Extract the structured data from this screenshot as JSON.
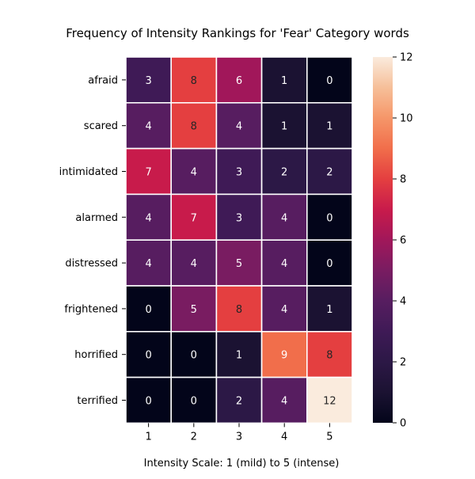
{
  "chart_data": {
    "type": "heatmap",
    "title": "Frequency of Intensity Rankings for 'Fear' Category words",
    "xlabel": "Intensity Scale: 1 (mild) to 5 (intense)",
    "ylabel": "",
    "x_categories": [
      "1",
      "2",
      "3",
      "4",
      "5"
    ],
    "y_categories": [
      "afraid",
      "scared",
      "intimidated",
      "alarmed",
      "distressed",
      "frightened",
      "horrified",
      "terrified"
    ],
    "values": [
      [
        3,
        8,
        6,
        1,
        0
      ],
      [
        4,
        8,
        4,
        1,
        1
      ],
      [
        7,
        4,
        3,
        2,
        2
      ],
      [
        4,
        7,
        3,
        4,
        0
      ],
      [
        4,
        4,
        5,
        4,
        0
      ],
      [
        0,
        5,
        8,
        4,
        1
      ],
      [
        0,
        0,
        1,
        9,
        8
      ],
      [
        0,
        0,
        2,
        4,
        12
      ]
    ],
    "colorbar": {
      "min": 0,
      "max": 12,
      "ticks": [
        "0",
        "2",
        "4",
        "6",
        "8",
        "10",
        "12"
      ],
      "colormap": "rocket"
    },
    "annotations": "cell values shown",
    "grid": "white cell separators",
    "legend": "colorbar-right"
  }
}
